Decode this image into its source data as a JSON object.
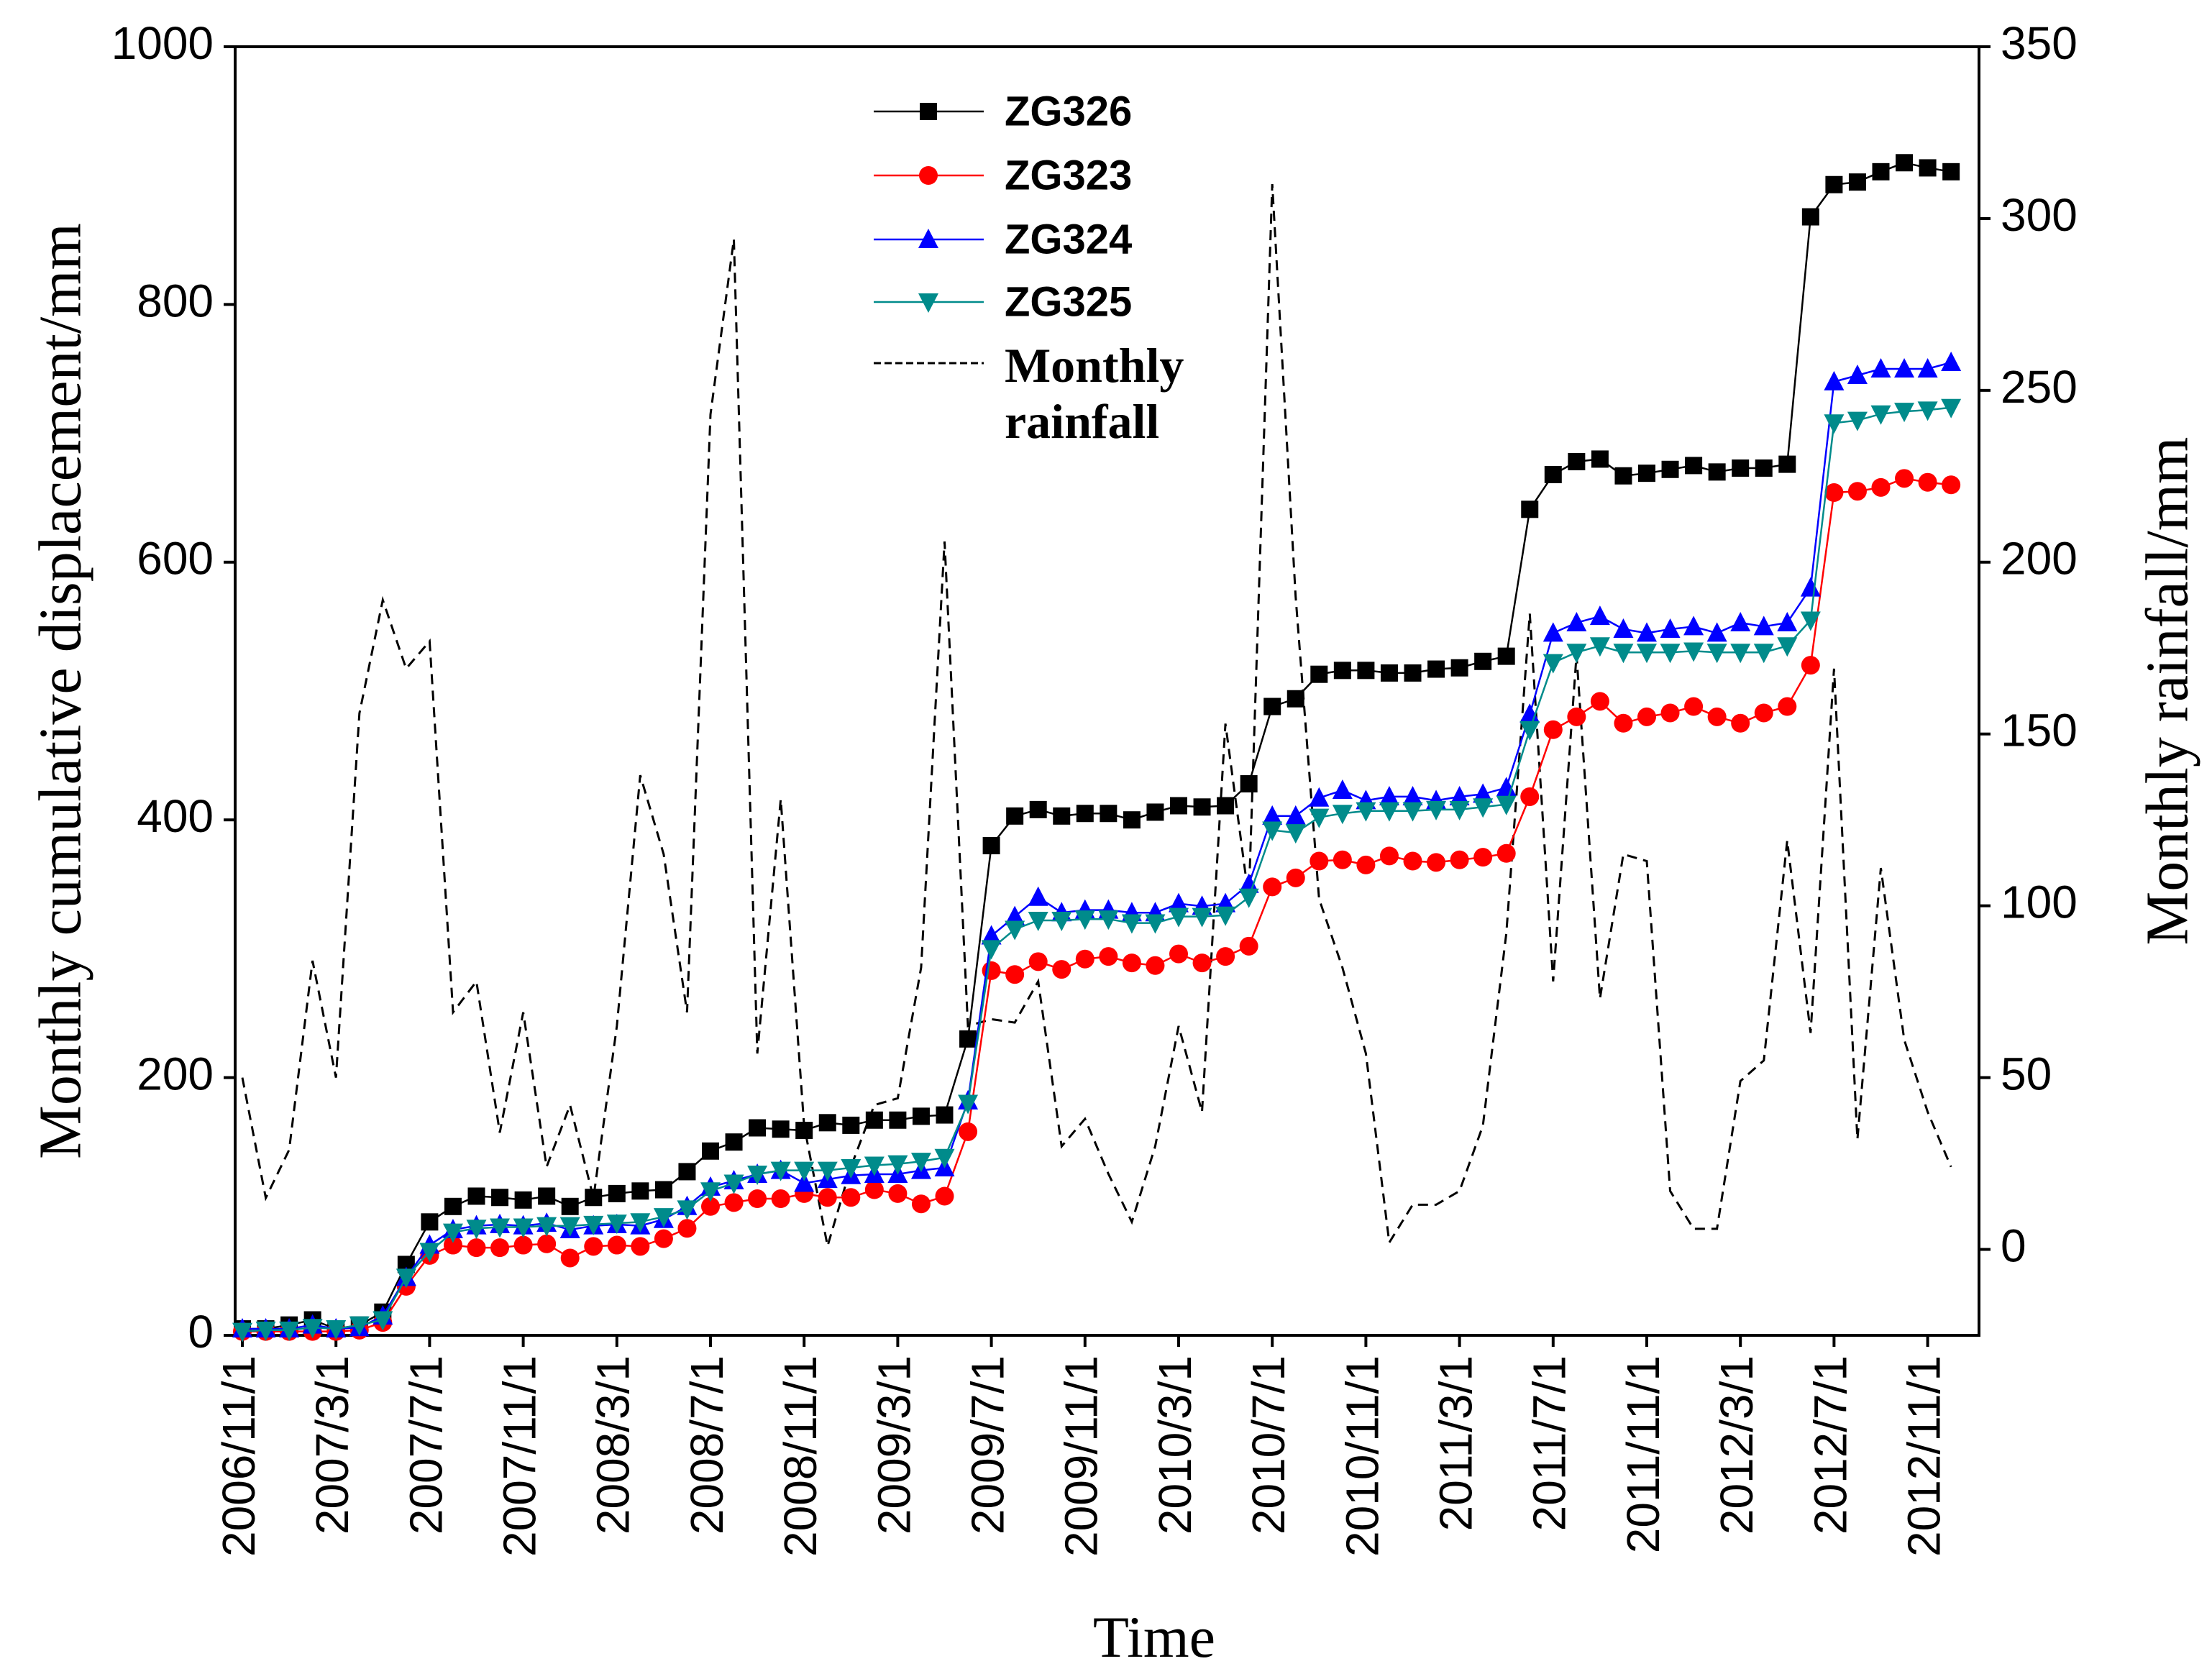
{
  "chart_data": {
    "type": "line",
    "x_label": "Time",
    "y_label": "Monthly cumulative displacement/mm",
    "y2_label": "Monthly rainfall/mm",
    "categories": [
      "2006/11/1",
      null,
      null,
      null,
      "2007/3/1",
      null,
      null,
      null,
      "2007/7/1",
      null,
      null,
      null,
      "2007/11/1",
      null,
      null,
      null,
      "2008/3/1",
      null,
      null,
      null,
      "2008/7/1",
      null,
      null,
      null,
      "2008/11/1",
      null,
      null,
      null,
      "2009/3/1",
      null,
      null,
      null,
      "2009/7/1",
      null,
      null,
      null,
      "2009/11/1",
      null,
      null,
      null,
      "2010/3/1",
      null,
      null,
      null,
      "2010/7/1",
      null,
      null,
      null,
      "2010/11/1",
      null,
      null,
      null,
      "2011/3/1",
      null,
      null,
      null,
      "2011/7/1",
      null,
      null,
      null,
      "2011/11/1",
      null,
      null,
      null,
      "2012/3/1",
      null,
      null,
      null,
      "2012/7/1",
      null,
      null,
      null,
      "2012/11/1",
      null
    ],
    "ylim": [
      0,
      1000
    ],
    "yticks": [
      0,
      200,
      400,
      600,
      800,
      1000
    ],
    "y2lim": [
      -25,
      350
    ],
    "y2ticks": [
      0,
      50,
      100,
      150,
      200,
      250,
      300,
      350
    ],
    "grid": false,
    "legend_position": "upper center",
    "series": [
      {
        "name": "ZG326",
        "color": "#000000",
        "marker": "square",
        "values": [
          5,
          5,
          8,
          12,
          5,
          8,
          18,
          55,
          88,
          100,
          108,
          107,
          105,
          108,
          100,
          107,
          110,
          112,
          113,
          127,
          143,
          150,
          161,
          160,
          159,
          165,
          163,
          167,
          167,
          170,
          171,
          230,
          380,
          403,
          408,
          403,
          405,
          405,
          400,
          406,
          411,
          410,
          411,
          428,
          488,
          494,
          513,
          516,
          516,
          514,
          514,
          517,
          518,
          523,
          527,
          641,
          668,
          678,
          680,
          667,
          669,
          672,
          675,
          670,
          673,
          673,
          676,
          868,
          893,
          895,
          903,
          910,
          906,
          903
        ]
      },
      {
        "name": "ZG323",
        "color": "#ff0000",
        "marker": "circle",
        "values": [
          3,
          3,
          3,
          3,
          3,
          4,
          10,
          38,
          62,
          70,
          68,
          68,
          70,
          71,
          60,
          69,
          70,
          69,
          75,
          83,
          100,
          103,
          106,
          106,
          110,
          107,
          107,
          113,
          110,
          102,
          108,
          158,
          283,
          280,
          290,
          284,
          292,
          294,
          289,
          287,
          296,
          289,
          294,
          302,
          348,
          355,
          368,
          369,
          365,
          372,
          368,
          367,
          369,
          371,
          374,
          418,
          470,
          480,
          492,
          475,
          480,
          483,
          488,
          480,
          475,
          483,
          488,
          520,
          654,
          655,
          658,
          665,
          662,
          660
        ]
      },
      {
        "name": "ZG324",
        "color": "#0000ff",
        "marker": "triangle-up",
        "values": [
          5,
          5,
          5,
          8,
          5,
          6,
          15,
          45,
          70,
          82,
          85,
          86,
          85,
          87,
          82,
          85,
          86,
          85,
          90,
          100,
          115,
          120,
          125,
          128,
          118,
          121,
          124,
          125,
          125,
          128,
          130,
          182,
          310,
          325,
          340,
          328,
          330,
          330,
          328,
          328,
          335,
          333,
          335,
          350,
          403,
          403,
          417,
          423,
          415,
          418,
          418,
          415,
          418,
          420,
          425,
          482,
          545,
          553,
          558,
          548,
          545,
          548,
          550,
          545,
          553,
          550,
          553,
          580,
          740,
          745,
          750,
          750,
          750,
          755
        ]
      },
      {
        "name": "ZG325",
        "color": "#008b8b",
        "marker": "triangle-down",
        "values": [
          3,
          4,
          4,
          6,
          5,
          8,
          12,
          45,
          65,
          80,
          83,
          84,
          84,
          85,
          85,
          86,
          87,
          88,
          92,
          98,
          112,
          118,
          125,
          128,
          128,
          128,
          130,
          132,
          133,
          135,
          138,
          180,
          300,
          315,
          322,
          322,
          323,
          323,
          320,
          320,
          325,
          325,
          326,
          340,
          392,
          390,
          402,
          405,
          407,
          407,
          407,
          408,
          408,
          410,
          412,
          470,
          522,
          530,
          535,
          530,
          530,
          530,
          531,
          530,
          530,
          530,
          535,
          555,
          708,
          710,
          715,
          717,
          718,
          720
        ]
      },
      {
        "name": "Monthly rainfall",
        "color": "#000000",
        "marker": "none",
        "line_style": "dashed",
        "axis": "y2",
        "values": [
          50,
          15,
          29,
          84,
          50,
          156,
          189,
          169,
          177,
          69,
          78,
          34,
          69,
          24,
          42,
          15,
          65,
          138,
          115,
          69,
          243,
          294,
          57,
          131,
          36,
          1,
          24,
          42,
          44,
          82,
          206,
          65,
          67,
          66,
          78,
          30,
          38,
          22,
          8,
          30,
          65,
          40,
          153,
          102,
          310,
          190,
          102,
          82,
          57,
          2,
          13,
          13,
          17,
          36,
          92,
          185,
          78,
          173,
          73,
          115,
          113,
          17,
          6,
          6,
          49,
          55,
          119,
          63,
          169,
          32,
          111,
          61,
          40,
          24
        ]
      }
    ]
  }
}
